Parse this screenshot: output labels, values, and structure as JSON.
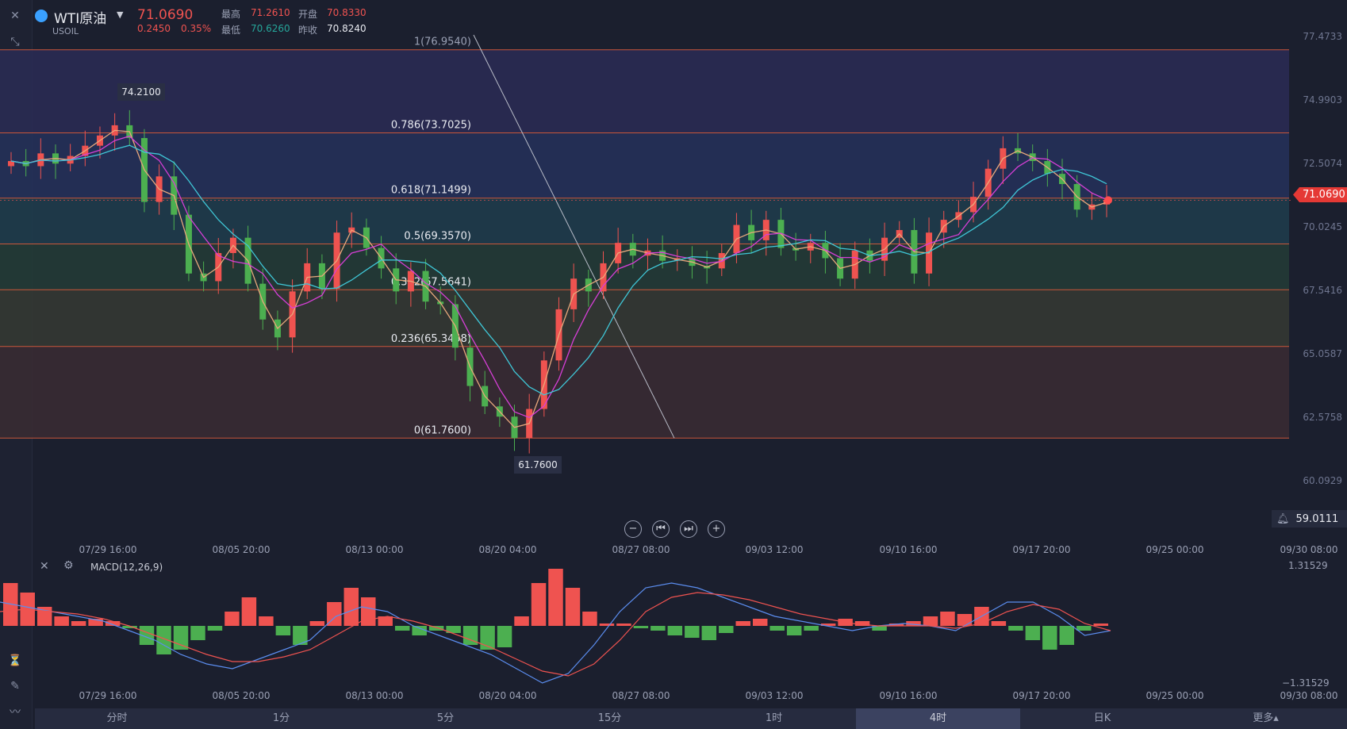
{
  "header": {
    "symbol": "WTI原油",
    "code": "USOIL",
    "last_price": "71.0690",
    "change": "0.2450",
    "change_pct": "0.35%",
    "high_label": "最高",
    "high": "71.2610",
    "open_label": "开盘",
    "open": "70.8330",
    "low_label": "最低",
    "low": "70.6260",
    "prev_close_label": "昨收",
    "prev_close": "70.8240"
  },
  "alert_price": "59.0111",
  "current_price_tag": "71.0690",
  "macd_label": "MACD(12,26,9)",
  "macd_axis": [
    "1.31529",
    "−1.31529"
  ],
  "timeframes": [
    "分时",
    "1分",
    "5分",
    "15分",
    "1时",
    "4时",
    "日K",
    "更多▴"
  ],
  "active_timeframe": "4时",
  "colors": {
    "up": "#ef5350",
    "down": "#4caf50",
    "ma1": "#e8a87c",
    "ma2": "#d63fd6",
    "ma3": "#3fc6d6",
    "macd_fast": "#5b8def",
    "macd_slow": "#ef5350"
  },
  "chart_data": {
    "type": "candlestick",
    "price_axis_ticks": [
      "77.4733",
      "74.9903",
      "72.5074",
      "70.0245",
      "67.5416",
      "65.0587",
      "62.5758",
      "60.0929"
    ],
    "time_ticks": [
      "07/29 16:00",
      "08/05 20:00",
      "08/13 00:00",
      "08/20 04:00",
      "08/27 08:00",
      "09/03 12:00",
      "09/10 16:00",
      "09/17 20:00",
      "09/25 00:00",
      "09/30 08:00"
    ],
    "fib_levels": [
      {
        "label": "1(76.9540)",
        "value": 76.954
      },
      {
        "label": "0.786(73.7025)",
        "value": 73.7025
      },
      {
        "label": "0.618(71.1499)",
        "value": 71.1499
      },
      {
        "label": "0.5(69.3570)",
        "value": 69.357
      },
      {
        "label": "0.382(67.5641)",
        "value": 67.5641
      },
      {
        "label": "0.236(65.3458)",
        "value": 65.3458
      },
      {
        "label": "0(61.7600)",
        "value": 61.76
      }
    ],
    "high_marker": "74.2100",
    "low_marker": "61.7600",
    "close_series": [
      72.6,
      72.4,
      72.9,
      72.5,
      72.8,
      73.2,
      73.6,
      74.0,
      73.5,
      71.0,
      72.0,
      70.5,
      68.2,
      67.9,
      69.0,
      69.6,
      67.8,
      66.4,
      65.7,
      67.5,
      68.6,
      67.6,
      69.8,
      70.0,
      69.2,
      68.4,
      67.5,
      68.3,
      67.1,
      67.0,
      65.3,
      63.8,
      63.0,
      62.6,
      61.76,
      62.9,
      64.8,
      66.8,
      68.0,
      67.5,
      68.6,
      69.4,
      68.9,
      69.1,
      68.7,
      68.8,
      68.5,
      68.4,
      69.0,
      70.1,
      69.5,
      70.3,
      69.2,
      69.1,
      69.4,
      68.8,
      68.0,
      69.1,
      68.7,
      69.6,
      69.9,
      68.2,
      69.8,
      70.3,
      70.6,
      71.2,
      72.3,
      73.1,
      72.9,
      72.6,
      72.1,
      71.7,
      70.7,
      70.9,
      71.07
    ],
    "macd_hist": [
      0.9,
      0.7,
      0.4,
      0.2,
      0.1,
      0.15,
      0.1,
      -0.05,
      -0.4,
      -0.6,
      -0.5,
      -0.3,
      -0.1,
      0.3,
      0.6,
      0.2,
      -0.2,
      -0.4,
      0.1,
      0.5,
      0.8,
      0.6,
      0.2,
      -0.1,
      -0.2,
      -0.1,
      -0.15,
      -0.4,
      -0.5,
      -0.45,
      0.2,
      0.9,
      1.2,
      0.8,
      0.3,
      0.05,
      0.05,
      -0.05,
      -0.1,
      -0.2,
      -0.25,
      -0.3,
      -0.15,
      0.1,
      0.15,
      -0.1,
      -0.2,
      -0.1,
      0.05,
      0.15,
      0.1,
      -0.1,
      0.05,
      0.1,
      0.2,
      0.3,
      0.25,
      0.4,
      0.1,
      -0.1,
      -0.3,
      -0.5,
      -0.4,
      -0.1,
      0.05
    ],
    "macd_fast": [
      0.5,
      0.4,
      0.3,
      0.2,
      0.1,
      -0.1,
      -0.3,
      -0.6,
      -0.8,
      -0.9,
      -0.7,
      -0.5,
      -0.3,
      0.2,
      0.4,
      0.3,
      0.0,
      -0.2,
      -0.4,
      -0.6,
      -0.9,
      -1.2,
      -1.0,
      -0.4,
      0.3,
      0.8,
      0.9,
      0.8,
      0.6,
      0.4,
      0.2,
      0.1,
      0.0,
      -0.1,
      0.0,
      0.05,
      0.0,
      -0.1,
      0.2,
      0.5,
      0.5,
      0.2,
      -0.2,
      -0.1
    ],
    "macd_slow": [
      0.3,
      0.35,
      0.3,
      0.25,
      0.15,
      0.0,
      -0.2,
      -0.4,
      -0.6,
      -0.75,
      -0.75,
      -0.65,
      -0.5,
      -0.2,
      0.1,
      0.2,
      0.1,
      -0.05,
      -0.25,
      -0.45,
      -0.7,
      -0.95,
      -1.05,
      -0.8,
      -0.3,
      0.3,
      0.6,
      0.7,
      0.65,
      0.55,
      0.4,
      0.25,
      0.15,
      0.05,
      0.0,
      0.0,
      0.0,
      -0.05,
      0.05,
      0.3,
      0.45,
      0.35,
      0.05,
      -0.1
    ]
  }
}
